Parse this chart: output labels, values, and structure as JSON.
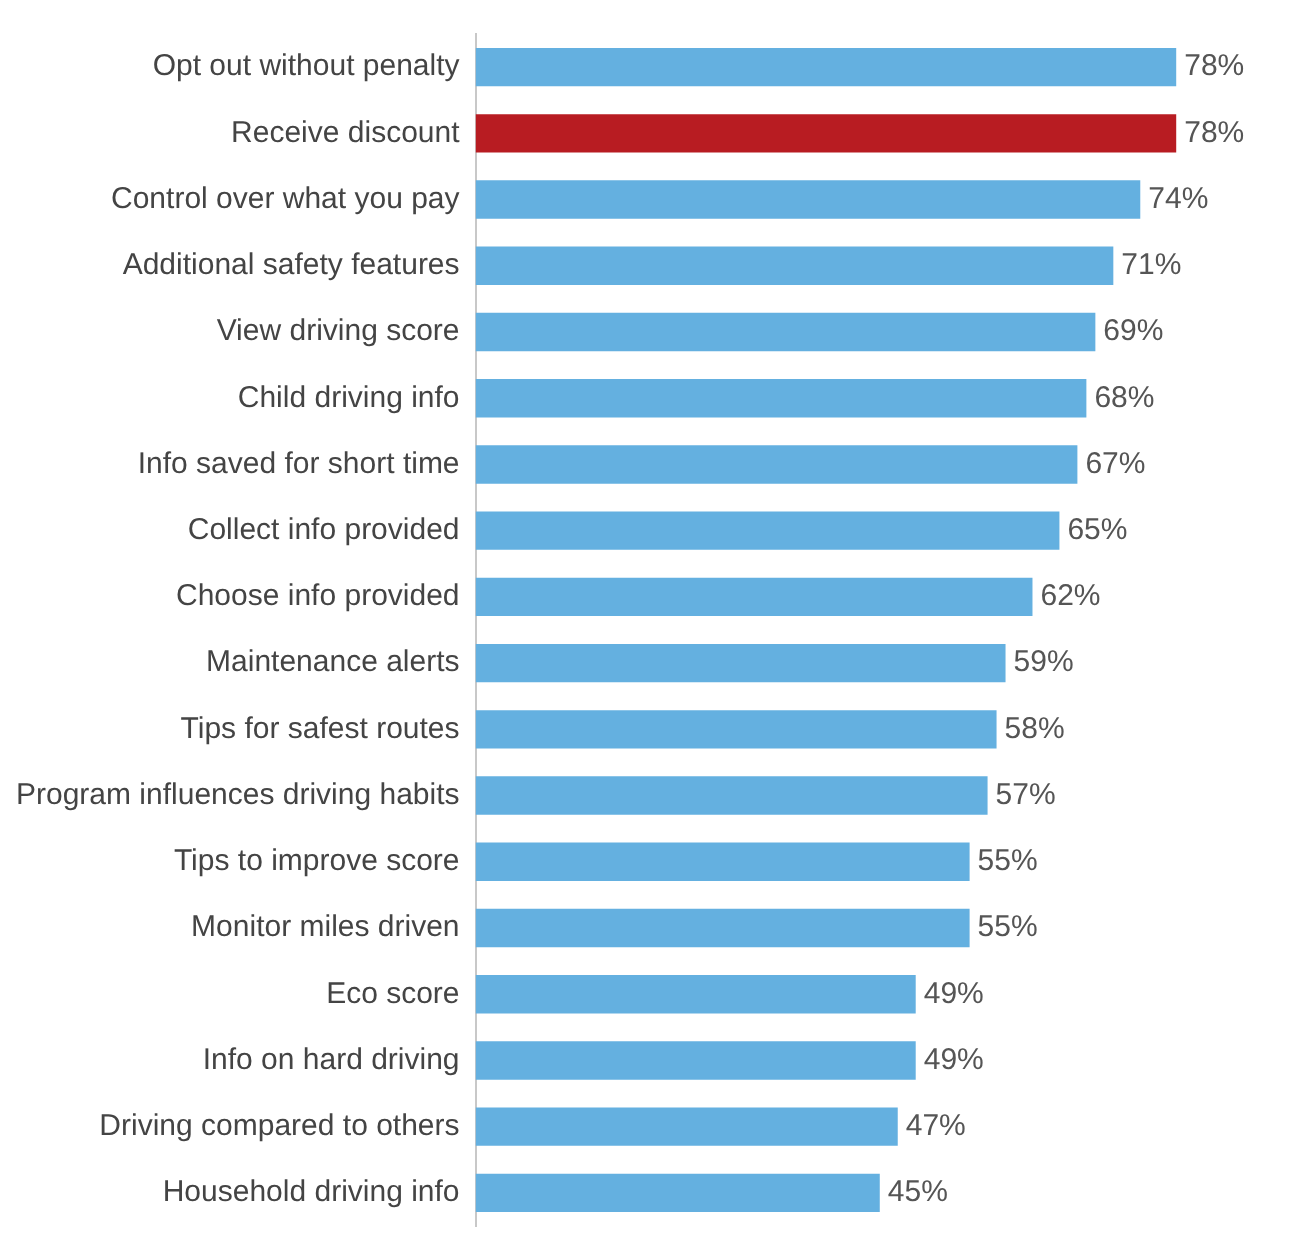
{
  "chart_data": {
    "type": "bar",
    "orientation": "horizontal",
    "categories": [
      "Opt out without penalty",
      "Receive discount",
      "Control over what you pay",
      "Additional safety features",
      "View driving score",
      "Child driving info",
      "Info saved for short time",
      "Collect info provided",
      "Choose info provided",
      "Maintenance alerts",
      "Tips for safest routes",
      "Program influences driving habits",
      "Tips to improve score",
      "Monitor miles driven",
      "Eco score",
      "Info on hard driving",
      "Driving compared to others",
      "Household driving info"
    ],
    "values": [
      78,
      78,
      74,
      71,
      69,
      68,
      67,
      65,
      62,
      59,
      58,
      57,
      55,
      55,
      49,
      49,
      47,
      45
    ],
    "value_labels": [
      "78%",
      "78%",
      "74%",
      "71%",
      "69%",
      "68%",
      "67%",
      "65%",
      "62%",
      "59%",
      "58%",
      "57%",
      "55%",
      "55%",
      "49%",
      "49%",
      "47%",
      "45%"
    ],
    "colors": [
      "#64b0e0",
      "#b81c22",
      "#64b0e0",
      "#64b0e0",
      "#64b0e0",
      "#64b0e0",
      "#64b0e0",
      "#64b0e0",
      "#64b0e0",
      "#64b0e0",
      "#64b0e0",
      "#64b0e0",
      "#64b0e0",
      "#64b0e0",
      "#64b0e0",
      "#64b0e0",
      "#64b0e0",
      "#64b0e0"
    ],
    "legend": false
  }
}
